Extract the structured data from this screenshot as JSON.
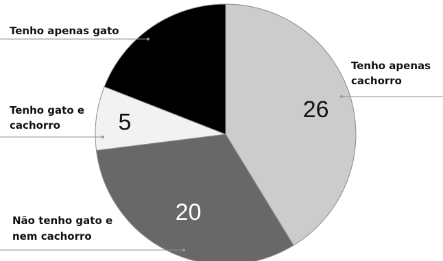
{
  "chart_data": {
    "type": "pie",
    "slices": [
      {
        "label": "Tenho apenas cachorro",
        "value": 26,
        "color": "#cccccc",
        "value_color": "#111111",
        "label_lines": [
          "Tenho apenas",
          "cachorro"
        ]
      },
      {
        "label": "Não tenho gato e nem cachorro",
        "value": 20,
        "color": "#686868",
        "value_color": "#ffffff",
        "label_lines": [
          "Não tenho gato e",
          "nem cachorro"
        ]
      },
      {
        "label": "Tenho gato e cachorro",
        "value": 5,
        "color": "#f2f2f2",
        "value_color": "#111111",
        "label_lines": [
          "Tenho gato e",
          "cachorro"
        ]
      },
      {
        "label": "Tenho apenas gato",
        "value": 12,
        "color": "#000000",
        "value_color": "#ffffff",
        "label_lines": [
          "Tenho apenas gato"
        ]
      }
    ],
    "show_values": [
      true,
      true,
      true,
      false
    ],
    "start": "12 o'clock",
    "direction": "clockwise",
    "edge_color": "#8c8c8c"
  }
}
